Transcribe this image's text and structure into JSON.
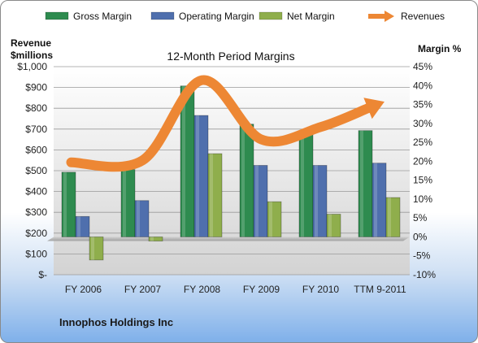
{
  "chart_data": {
    "type": "bar",
    "title": "12-Month Period Margins",
    "company": "Innophos Holdings Inc",
    "y_left_label_line1": "Revenue",
    "y_left_label_line2": "$millions",
    "y_right_label": "Margin %",
    "categories": [
      "FY 2006",
      "FY 2007",
      "FY 2008",
      "FY 2009",
      "FY 2010",
      "TTM 9-2011"
    ],
    "y_left_ticks": [
      "$-",
      "$100",
      "$200",
      "$300",
      "$400",
      "$500",
      "$600",
      "$700",
      "$800",
      "$900",
      "$1,000"
    ],
    "y_left_range": [
      0,
      1000
    ],
    "y_right_ticks": [
      "-10%",
      "-5%",
      "0%",
      "5%",
      "10%",
      "15%",
      "20%",
      "25%",
      "30%",
      "35%",
      "40%",
      "45%"
    ],
    "y_right_range": [
      -10,
      45
    ],
    "legend_position": "top",
    "series": [
      {
        "name": "Gross Margin",
        "kind": "bar",
        "axis": "right",
        "color": "#2e8b4f",
        "values": [
          17.1,
          17.8,
          39.9,
          29.8,
          27.7,
          28.1
        ]
      },
      {
        "name": "Operating Margin",
        "kind": "bar",
        "axis": "right",
        "color": "#4f6fad",
        "values": [
          5.4,
          9.6,
          32.1,
          18.9,
          18.9,
          19.5
        ]
      },
      {
        "name": "Net Margin",
        "kind": "bar",
        "axis": "right",
        "color": "#8fae4c",
        "values": [
          -6.1,
          -1.1,
          22.0,
          9.3,
          6.0,
          10.4
        ]
      },
      {
        "name": "Revenues",
        "kind": "line",
        "axis": "left",
        "color": "#ed8734",
        "values": [
          540,
          550,
          935,
          650,
          710,
          800
        ]
      }
    ]
  }
}
